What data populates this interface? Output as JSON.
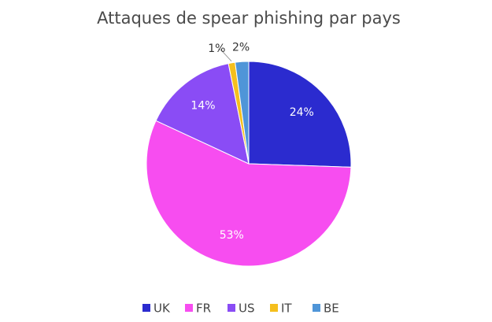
{
  "chart_data": {
    "type": "pie",
    "title": "Attaques de spear phishing par pays",
    "categories": [
      "UK",
      "FR",
      "US",
      "IT",
      "BE"
    ],
    "values": [
      24,
      53,
      14,
      1,
      2
    ],
    "value_labels": [
      "24%",
      "53%",
      "14%",
      "1%",
      "2%"
    ],
    "colors": [
      "#2b2bcf",
      "#f74df0",
      "#8a4cf5",
      "#f5bf1d",
      "#4f95d8"
    ]
  }
}
